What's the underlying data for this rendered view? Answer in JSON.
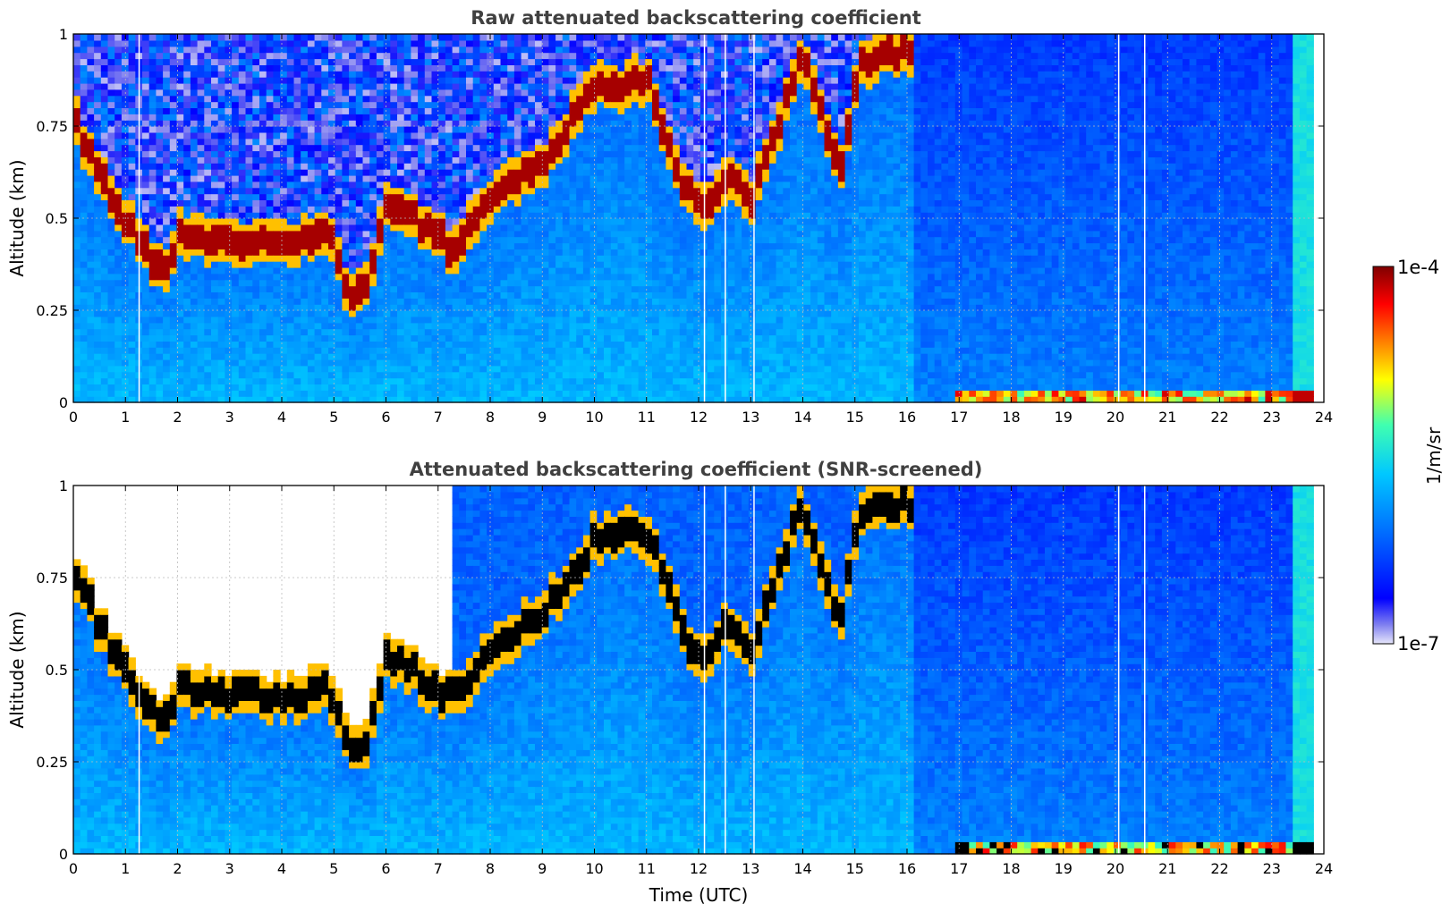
{
  "figure": {
    "xlabel": "Time (UTC)",
    "colorbar": {
      "label": "1/m/sr",
      "min_label": "1e-7",
      "max_label": "1e-4",
      "scale": "log",
      "range": [
        1e-07,
        0.0001
      ],
      "colormap": [
        "#e6e6fa",
        "#0000ff",
        "#00c8ff",
        "#40ffb0",
        "#ffff00",
        "#ff8000",
        "#ff0000",
        "#800000"
      ]
    }
  },
  "chart_data": [
    {
      "type": "heatmap",
      "title": "Raw attenuated backscattering coefficient",
      "xlabel": "",
      "ylabel": "Altitude (km)",
      "xlim": [
        0,
        24
      ],
      "ylim": [
        0,
        1
      ],
      "xticks": [
        "0",
        "1",
        "2",
        "3",
        "4",
        "5",
        "6",
        "7",
        "8",
        "9",
        "10",
        "11",
        "12",
        "13",
        "14",
        "15",
        "16",
        "17",
        "18",
        "19",
        "20",
        "21",
        "22",
        "23",
        "24"
      ],
      "yticks": [
        "0",
        "0.25",
        "0.5",
        "0.75",
        "1"
      ],
      "grid": true,
      "data_end_time": 23.8,
      "gap_times": [
        1.25,
        12.1,
        12.5,
        13.05,
        20.05,
        20.55
      ],
      "cloud_layer": {
        "time": [
          0,
          0.5,
          1.0,
          1.5,
          1.75,
          2,
          3,
          4,
          4.9,
          5.3,
          5.7,
          6,
          6.5,
          7,
          7.25,
          8,
          9,
          10,
          11,
          11.7,
          12.1,
          12.5,
          13,
          14,
          14.7,
          15.1,
          15.7
        ],
        "altitude_km": [
          0.78,
          0.62,
          0.5,
          0.39,
          0.36,
          0.45,
          0.44,
          0.42,
          0.46,
          0.28,
          0.33,
          0.55,
          0.5,
          0.45,
          0.42,
          0.55,
          0.65,
          0.85,
          0.88,
          0.6,
          0.52,
          0.62,
          0.55,
          0.95,
          0.62,
          0.92,
          0.95
        ]
      },
      "surface_signal_times": [
        16.9,
        23.8
      ],
      "has_noise_above_cloud": true,
      "screened": false
    },
    {
      "type": "heatmap",
      "title": "Attenuated backscattering coefficient (SNR-screened)",
      "xlabel": "Time (UTC)",
      "ylabel": "Altitude (km)",
      "xlim": [
        0,
        24
      ],
      "ylim": [
        0,
        1
      ],
      "xticks": [
        "0",
        "1",
        "2",
        "3",
        "4",
        "5",
        "6",
        "7",
        "8",
        "9",
        "10",
        "11",
        "12",
        "13",
        "14",
        "15",
        "16",
        "17",
        "18",
        "19",
        "20",
        "21",
        "22",
        "23",
        "24"
      ],
      "yticks": [
        "0",
        "0.25",
        "0.5",
        "0.75",
        "1"
      ],
      "grid": true,
      "data_end_time": 23.8,
      "gap_times": [
        1.25,
        12.1,
        12.5,
        13.05,
        20.05,
        20.55
      ],
      "cloud_layer": {
        "time": [
          0,
          0.5,
          1.0,
          1.5,
          1.75,
          2,
          3,
          4,
          4.9,
          5.3,
          5.7,
          6,
          6.5,
          7,
          7.25,
          8,
          9,
          10,
          11,
          11.7,
          12.1,
          12.5,
          13,
          14,
          14.7,
          15.1,
          15.7
        ],
        "altitude_km": [
          0.78,
          0.62,
          0.5,
          0.39,
          0.36,
          0.45,
          0.44,
          0.42,
          0.46,
          0.28,
          0.33,
          0.55,
          0.5,
          0.45,
          0.42,
          0.55,
          0.65,
          0.85,
          0.88,
          0.6,
          0.52,
          0.62,
          0.55,
          0.95,
          0.62,
          0.92,
          0.95
        ]
      },
      "surface_signal_times": [
        16.9,
        23.8
      ],
      "has_noise_above_cloud": false,
      "screened": true,
      "saturated_color": "#000000"
    }
  ]
}
